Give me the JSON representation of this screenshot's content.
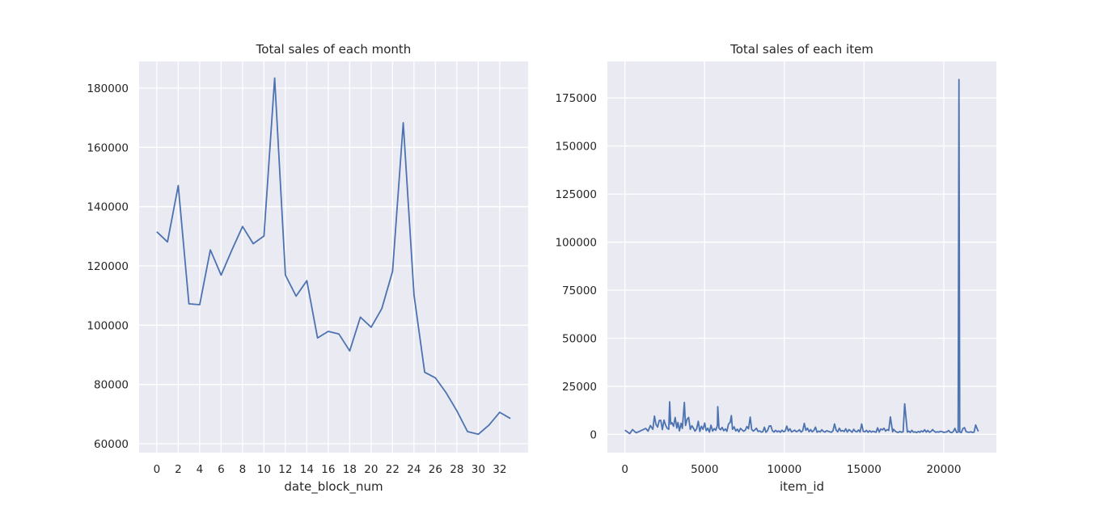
{
  "chart_data": [
    {
      "type": "line",
      "title": "Total sales of each month",
      "xlabel": "date_block_num",
      "ylabel": "",
      "xlim": [
        -1.65,
        34.65
      ],
      "ylim": [
        57000,
        189000
      ],
      "grid": true,
      "xticks": [
        0,
        2,
        4,
        6,
        8,
        10,
        12,
        14,
        16,
        18,
        20,
        22,
        24,
        26,
        28,
        30,
        32
      ],
      "yticks": [
        60000,
        80000,
        100000,
        120000,
        140000,
        160000,
        180000
      ],
      "series": [
        {
          "x": [
            0,
            1,
            2,
            3,
            4,
            5,
            6,
            7,
            8,
            9,
            10,
            11,
            12,
            13,
            14,
            15,
            16,
            17,
            18,
            19,
            20,
            21,
            22,
            23,
            24,
            25,
            26,
            27,
            28,
            29,
            30,
            31,
            32,
            33
          ],
          "values": [
            131500,
            128100,
            147100,
            107200,
            106900,
            125400,
            116900,
            125300,
            133300,
            127500,
            130100,
            183400,
            116900,
            109800,
            115000,
            95700,
            97900,
            97000,
            91300,
            102700,
            99300,
            105600,
            118200,
            168300,
            110200,
            84100,
            82200,
            77200,
            71100,
            64100,
            63200,
            66300,
            70600,
            68500
          ]
        }
      ]
    },
    {
      "type": "line",
      "title": "Total sales of each item",
      "xlabel": "item_id",
      "ylabel": "",
      "xlim": [
        -1100,
        23300
      ],
      "ylim": [
        -9500,
        194000
      ],
      "grid": true,
      "xticks": [
        0,
        5000,
        10000,
        15000,
        20000
      ],
      "yticks": [
        0,
        25000,
        50000,
        75000,
        100000,
        125000,
        150000,
        175000
      ],
      "series": [
        {
          "x": [
            0,
            300,
            480,
            700,
            900,
            1100,
            1300,
            1450,
            1600,
            1750,
            1850,
            1950,
            2050,
            2150,
            2250,
            2350,
            2450,
            2550,
            2650,
            2750,
            2808,
            2870,
            2950,
            3050,
            3150,
            3250,
            3330,
            3420,
            3520,
            3600,
            3731,
            3800,
            3900,
            4000,
            4100,
            4200,
            4300,
            4400,
            4500,
            4600,
            4700,
            4800,
            4900,
            5000,
            5100,
            5200,
            5300,
            5400,
            5500,
            5600,
            5700,
            5800,
            5822,
            5900,
            6000,
            6100,
            6200,
            6300,
            6400,
            6500,
            6600,
            6675,
            6750,
            6850,
            6950,
            7050,
            7150,
            7250,
            7350,
            7450,
            7550,
            7650,
            7750,
            7856,
            7950,
            8050,
            8150,
            8250,
            8350,
            8450,
            8550,
            8650,
            8750,
            8850,
            8950,
            9050,
            9150,
            9250,
            9350,
            9450,
            9550,
            9650,
            9750,
            9850,
            9950,
            10050,
            10150,
            10250,
            10350,
            10450,
            10550,
            10650,
            10750,
            10850,
            10950,
            11050,
            11150,
            11250,
            11350,
            11450,
            11550,
            11650,
            11750,
            11850,
            11950,
            12050,
            12150,
            12250,
            12350,
            12450,
            12550,
            12650,
            12750,
            12850,
            12950,
            13050,
            13150,
            13250,
            13350,
            13450,
            13550,
            13650,
            13750,
            13850,
            13950,
            14050,
            14150,
            14250,
            14350,
            14450,
            14550,
            14650,
            14750,
            14850,
            14950,
            15050,
            15150,
            15250,
            15350,
            15450,
            15550,
            15650,
            15750,
            15850,
            15950,
            16050,
            16150,
            16250,
            16350,
            16450,
            16550,
            16650,
            16790,
            16850,
            16950,
            17050,
            17150,
            17250,
            17350,
            17450,
            17550,
            17717,
            17800,
            17900,
            18000,
            18100,
            18200,
            18300,
            18400,
            18500,
            18600,
            18700,
            18800,
            18900,
            19000,
            19100,
            19200,
            19300,
            19400,
            19500,
            19600,
            19700,
            19800,
            19900,
            20000,
            20100,
            20200,
            20300,
            20400,
            20500,
            20600,
            20700,
            20800,
            20900,
            20949,
            21000,
            21100,
            21200,
            21300,
            21400,
            21500,
            21600,
            21700,
            21800,
            21900,
            22000,
            22100,
            22167
          ],
          "values": [
            2200,
            400,
            2500,
            800,
            1500,
            2300,
            3100,
            1700,
            4600,
            2600,
            9500,
            5200,
            3800,
            7200,
            7300,
            2500,
            7400,
            4800,
            3200,
            2600,
            16900,
            5300,
            6100,
            4200,
            8800,
            3300,
            6200,
            1800,
            5700,
            3100,
            16600,
            4600,
            7900,
            8800,
            2600,
            4500,
            3100,
            1700,
            2900,
            6800,
            1500,
            4200,
            2600,
            5900,
            1900,
            3200,
            1200,
            4800,
            1700,
            3000,
            2100,
            4600,
            14400,
            3200,
            2400,
            3600,
            1900,
            2800,
            1600,
            5400,
            6200,
            9800,
            2600,
            3900,
            1800,
            2700,
            1300,
            3100,
            2300,
            1600,
            2200,
            4100,
            2900,
            9000,
            2600,
            1700,
            2300,
            3200,
            1500,
            1800,
            1200,
            1400,
            3700,
            1100,
            2000,
            4300,
            4400,
            1900,
            1200,
            2100,
            1300,
            1800,
            1100,
            2200,
            1400,
            1700,
            4300,
            1700,
            2900,
            1300,
            1700,
            2200,
            1400,
            1700,
            2400,
            1200,
            1900,
            5700,
            2100,
            3200,
            1400,
            2500,
            1300,
            2000,
            3800,
            1100,
            1700,
            1300,
            2400,
            1500,
            1200,
            1900,
            1600,
            1300,
            1100,
            1800,
            5400,
            2100,
            1300,
            3200,
            1600,
            2000,
            1400,
            2900,
            1200,
            2500,
            1800,
            1100,
            2600,
            1600,
            1300,
            2300,
            1200,
            5400,
            1500,
            1300,
            2100,
            1100,
            1900,
            1200,
            1600,
            1400,
            1100,
            3400,
            1200,
            2800,
            2300,
            3200,
            1700,
            2500,
            2000,
            9100,
            1300,
            2600,
            1700,
            1200,
            1000,
            1500,
            1100,
            1300,
            15900,
            1200,
            1700,
            1000,
            2100,
            1100,
            1300,
            900,
            1500,
            1100,
            1800,
            1300,
            2400,
            1200,
            2000,
            1100,
            1500,
            2500,
            1600,
            1100,
            1300,
            1200,
            1600,
            1400,
            1000,
            1200,
            1300,
            2000,
            1100,
            900,
            1500,
            3100,
            1000,
            1200,
            184600,
            1300,
            900,
            3000,
            3500,
            1400,
            1200,
            1100,
            1300,
            1000,
            1200,
            4900,
            2800,
            1500
          ]
        }
      ]
    }
  ]
}
